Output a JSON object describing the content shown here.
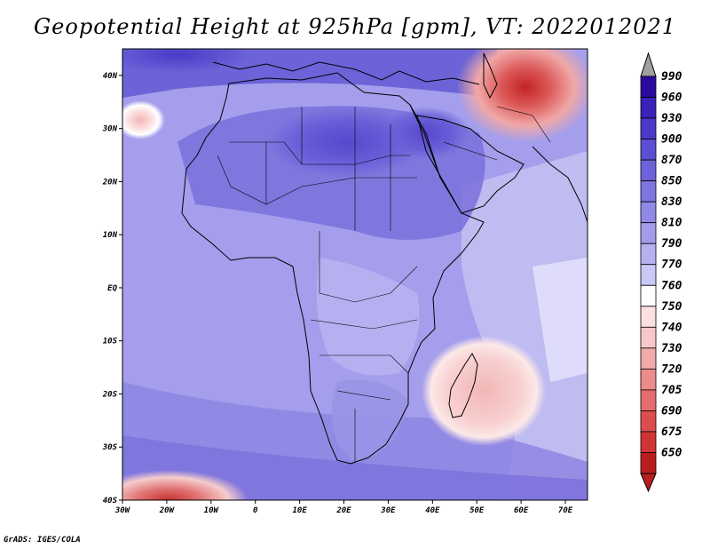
{
  "title": "Geopotential Height at 925hPa [gpm], VT: 2022012021",
  "credit": "GrADS: IGES/COLA",
  "map": {
    "projection": "latlon",
    "lon_range": [
      -30,
      75
    ],
    "lat_range": [
      -40,
      45
    ],
    "lat_ticks": [
      {
        "value": 40,
        "label": "40N"
      },
      {
        "value": 30,
        "label": "30N"
      },
      {
        "value": 20,
        "label": "20N"
      },
      {
        "value": 10,
        "label": "10N"
      },
      {
        "value": 0,
        "label": "EQ"
      },
      {
        "value": -10,
        "label": "10S"
      },
      {
        "value": -20,
        "label": "20S"
      },
      {
        "value": -30,
        "label": "30S"
      },
      {
        "value": -40,
        "label": "40S"
      }
    ],
    "lon_ticks": [
      {
        "value": -30,
        "label": "30W"
      },
      {
        "value": -20,
        "label": "20W"
      },
      {
        "value": -10,
        "label": "10W"
      },
      {
        "value": 0,
        "label": "0"
      },
      {
        "value": 10,
        "label": "10E"
      },
      {
        "value": 20,
        "label": "20E"
      },
      {
        "value": 30,
        "label": "30E"
      },
      {
        "value": 40,
        "label": "40E"
      },
      {
        "value": 50,
        "label": "50E"
      },
      {
        "value": 60,
        "label": "60E"
      },
      {
        "value": 70,
        "label": "70E"
      }
    ],
    "features": [
      {
        "name": "iran-low",
        "lon": 59,
        "lat": 39,
        "value": 650
      },
      {
        "name": "madagascar-low",
        "lon": 49,
        "lat": -20,
        "value": 740
      },
      {
        "name": "atlantic-low",
        "lon": -26,
        "lat": 31,
        "value": 750
      },
      {
        "name": "southern-ocean-low",
        "lon": -20,
        "lat": -40,
        "value": 705
      },
      {
        "name": "sahara-high",
        "lon": 20,
        "lat": 28,
        "value": 900
      }
    ]
  },
  "colorbar": {
    "levels": [
      "990",
      "960",
      "930",
      "900",
      "870",
      "850",
      "830",
      "810",
      "790",
      "770",
      "760",
      "750",
      "740",
      "730",
      "720",
      "705",
      "690",
      "675",
      "650"
    ],
    "colors": [
      "#2a0a9e",
      "#3a22b8",
      "#4b3ac7",
      "#5c4fd2",
      "#6e63da",
      "#7f76e0",
      "#9189e6",
      "#a39ceb",
      "#b6b1f0",
      "#cac8f5",
      "#ffffff",
      "#fbe0e0",
      "#f8c7c7",
      "#f2aaaa",
      "#ec8c8c",
      "#e46c6c",
      "#dc4e4e",
      "#d03535",
      "#b81e1e"
    ],
    "top_arrow_color": "#a0a0a0",
    "bottom_arrow_color": "#b81e1e"
  }
}
